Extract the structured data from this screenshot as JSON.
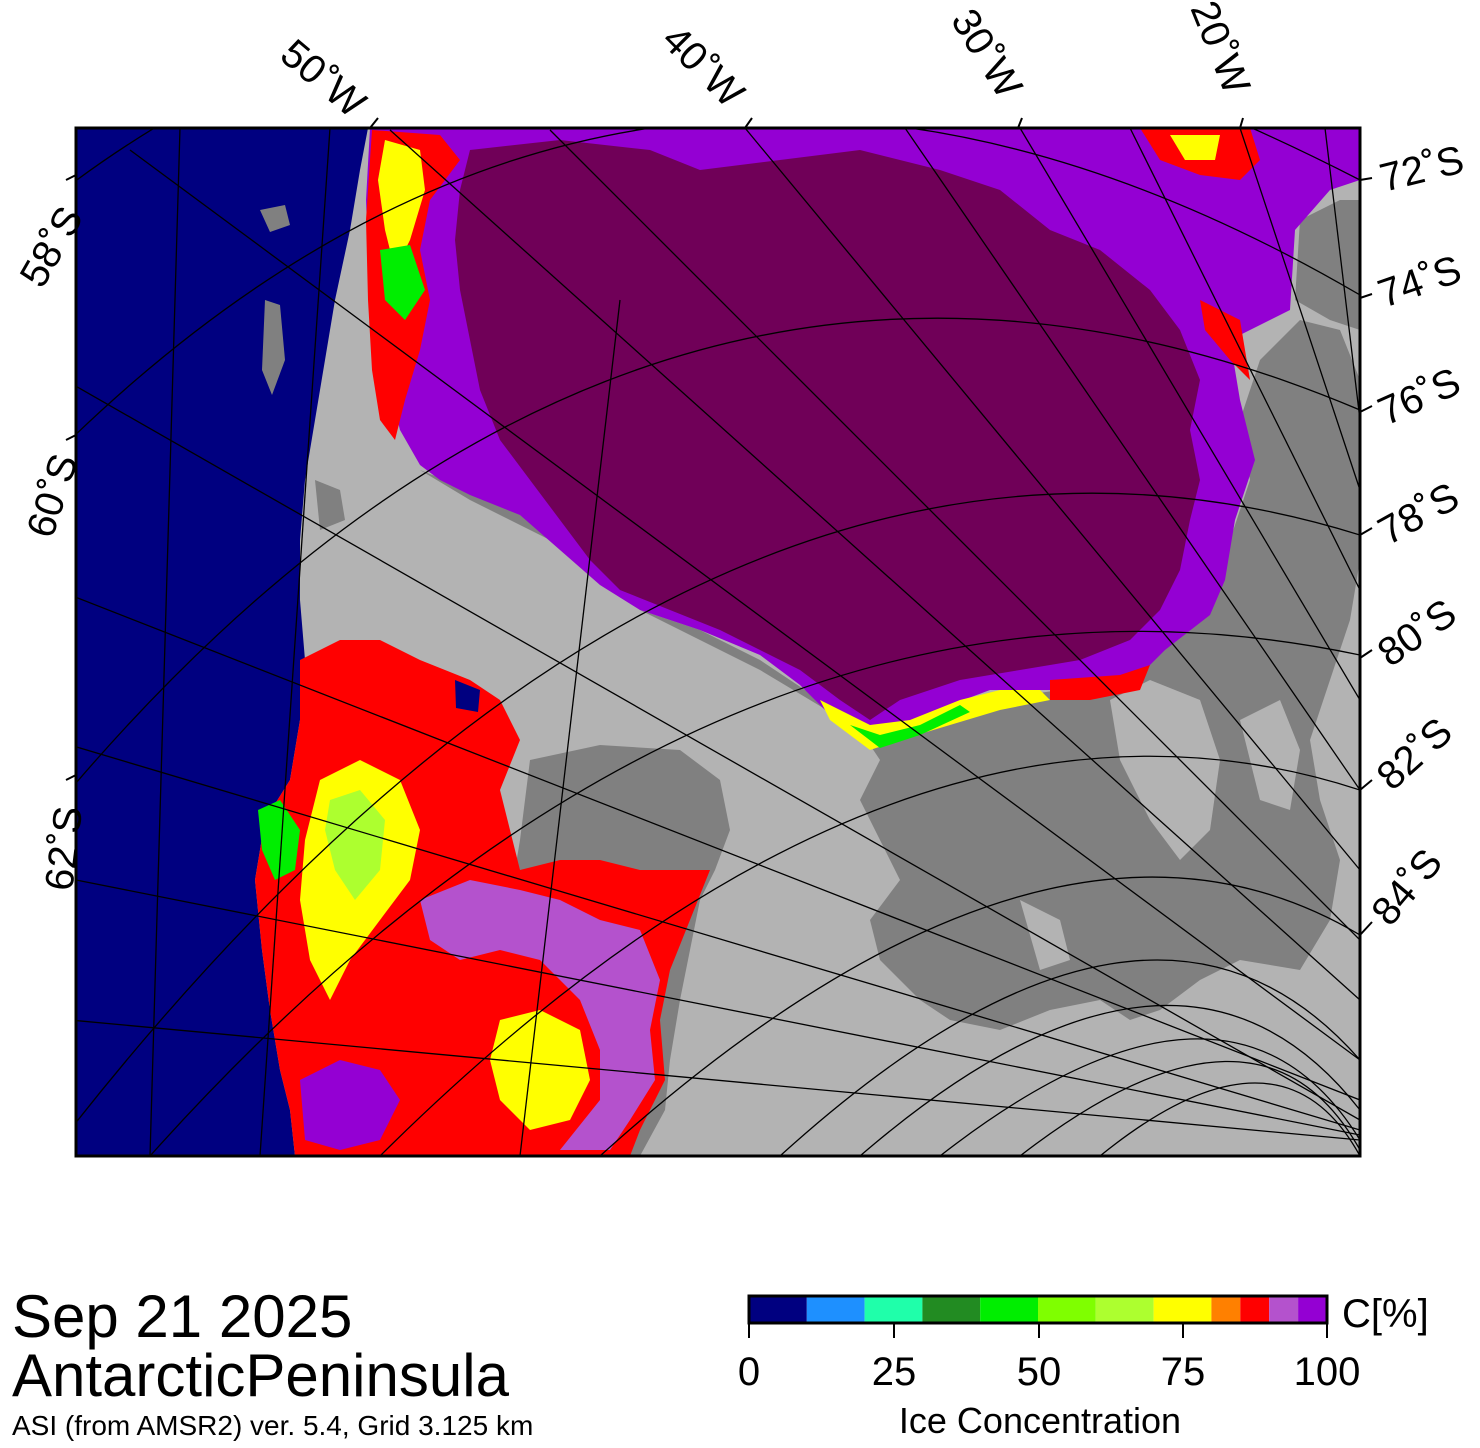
{
  "info": {
    "date": "Sep 21 2025",
    "region": "AntarcticPeninsula",
    "source": "ASI (from AMSR2) ver. 5.4,  Grid 3.125 km"
  },
  "map": {
    "longitude_labels": [
      "50˚W",
      "40˚W",
      "30˚W",
      "20˚W"
    ],
    "latitude_labels_left": [
      "58˚S",
      "60˚S",
      "62˚S"
    ],
    "latitude_labels_right": [
      "72˚S",
      "74˚S",
      "76˚S",
      "78˚S",
      "80˚S",
      "82˚S",
      "84˚S"
    ],
    "colors": {
      "open_water": "#000080",
      "land": "#b3b3b3",
      "ice_shelf": "#808080",
      "dense_ice": "#700058"
    }
  },
  "colorbar": {
    "title": "Ice Concentration",
    "unit": "C[%]",
    "ticks": [
      "0",
      "25",
      "50",
      "75",
      "100"
    ],
    "colors": [
      "#000080",
      "#1e90ff",
      "#1fffaa",
      "#228b22",
      "#00ee00",
      "#7fff00",
      "#adff2f",
      "#ffff00",
      "#ff8000",
      "#ff0000",
      "#b452cd",
      "#9400d3"
    ],
    "values": [
      0,
      10,
      20,
      30,
      40,
      50,
      60,
      70,
      80,
      85,
      90,
      95,
      100
    ]
  }
}
